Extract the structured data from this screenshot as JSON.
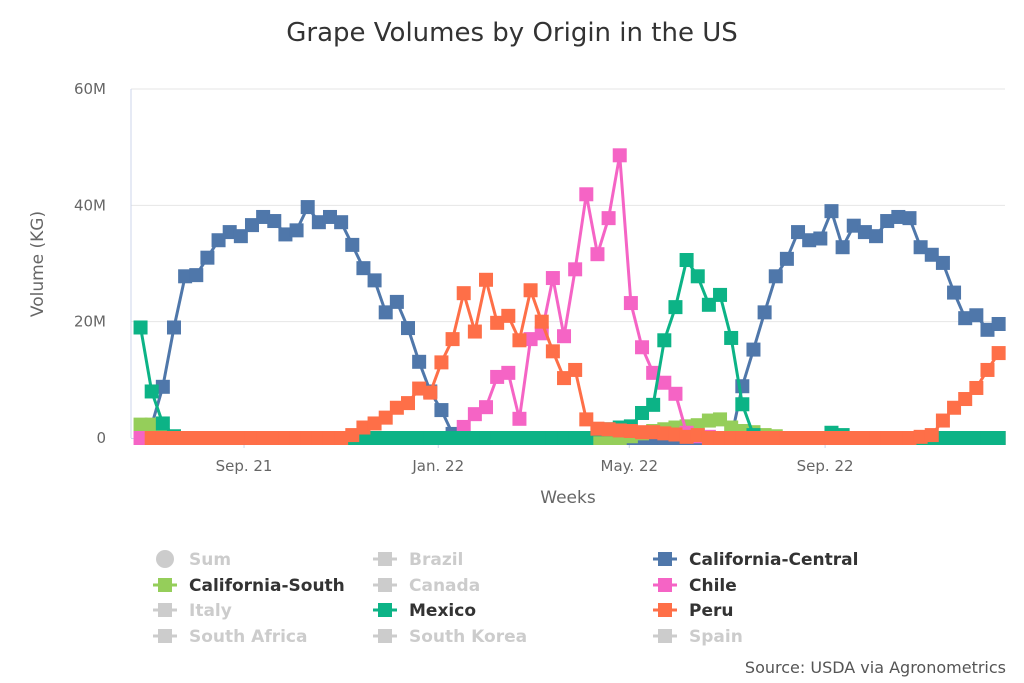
{
  "chart_data": {
    "type": "line",
    "title": "Grape Volumes by Origin in the US",
    "xlabel": "Weeks",
    "ylabel": "Volume (KG)",
    "ylim": [
      0,
      60000000
    ],
    "yticks": [
      0,
      20000000,
      40000000,
      60000000
    ],
    "ytick_labels": [
      "0",
      "20M",
      "40M",
      "60M"
    ],
    "xlim": [
      "2021-06-22",
      "2022-12-23"
    ],
    "xticks": [
      "2021-09-01",
      "2022-01-01",
      "2022-05-01",
      "2022-09-01"
    ],
    "xtick_labels": [
      "Sep. 21",
      "Jan. 22",
      "May. 22",
      "Sep. 22"
    ],
    "grid": "horizontal",
    "unit_scale": "millions of KG",
    "marker": "square",
    "x": [
      "2021-06-28",
      "2021-07-05",
      "2021-07-12",
      "2021-07-19",
      "2021-07-26",
      "2021-08-02",
      "2021-08-09",
      "2021-08-16",
      "2021-08-23",
      "2021-08-30",
      "2021-09-06",
      "2021-09-13",
      "2021-09-20",
      "2021-09-27",
      "2021-10-04",
      "2021-10-11",
      "2021-10-18",
      "2021-10-25",
      "2021-11-01",
      "2021-11-08",
      "2021-11-15",
      "2021-11-22",
      "2021-11-29",
      "2021-12-06",
      "2021-12-13",
      "2021-12-20",
      "2021-12-27",
      "2022-01-03",
      "2022-01-10",
      "2022-01-17",
      "2022-01-24",
      "2022-01-31",
      "2022-02-07",
      "2022-02-14",
      "2022-02-21",
      "2022-02-28",
      "2022-03-07",
      "2022-03-14",
      "2022-03-21",
      "2022-03-28",
      "2022-04-04",
      "2022-04-11",
      "2022-04-18",
      "2022-04-25",
      "2022-05-02",
      "2022-05-09",
      "2022-05-16",
      "2022-05-23",
      "2022-05-30",
      "2022-06-06",
      "2022-06-13",
      "2022-06-20",
      "2022-06-27",
      "2022-07-04",
      "2022-07-11",
      "2022-07-18",
      "2022-07-25",
      "2022-08-01",
      "2022-08-08",
      "2022-08-15",
      "2022-08-22",
      "2022-08-29",
      "2022-09-05",
      "2022-09-12",
      "2022-09-19",
      "2022-09-26",
      "2022-10-03",
      "2022-10-10",
      "2022-10-17",
      "2022-10-24",
      "2022-10-31",
      "2022-11-07",
      "2022-11-14",
      "2022-11-21",
      "2022-11-28",
      "2022-12-05",
      "2022-12-12",
      "2022-12-19"
    ],
    "series": [
      {
        "name": "California-Central",
        "color": "#4f77aa",
        "values": [
          null,
          2.2,
          8.8,
          19,
          27.8,
          28,
          31,
          34,
          35.4,
          34.7,
          36.6,
          38,
          37.3,
          35,
          35.7,
          39.7,
          37.1,
          38,
          37.1,
          33.2,
          29.2,
          27.1,
          21.6,
          23.4,
          18.9,
          13.1,
          8,
          4.8,
          0.7,
          0,
          0,
          0,
          0,
          0,
          0,
          0,
          0,
          0,
          0,
          0,
          0,
          0,
          0,
          0,
          0,
          0,
          0,
          0,
          0,
          0,
          0,
          0,
          0,
          0,
          8.9,
          15.2,
          21.6,
          27.8,
          30.8,
          35.4,
          34,
          34.3,
          39,
          32.8,
          36.5,
          35.4,
          34.7,
          37.3,
          38,
          37.8,
          32.8,
          31.5,
          30.1,
          25,
          20.6,
          21.1,
          18.6,
          19.6
        ]
      },
      {
        "name": "California-South",
        "color": "#95ce5a",
        "values": [
          2.3,
          2.3,
          0.5,
          0,
          0,
          0,
          0,
          0,
          0,
          0,
          0,
          0,
          0,
          0,
          0,
          0,
          0,
          0,
          0,
          0,
          0,
          0,
          0,
          0,
          0,
          0,
          0,
          0,
          0,
          0,
          0,
          0,
          0,
          0,
          0,
          0,
          0,
          0,
          0,
          0,
          0,
          0,
          0,
          0,
          0.3,
          0.8,
          1.2,
          1.5,
          1.8,
          2,
          2.2,
          3,
          3.2,
          1.8,
          1.2,
          1,
          0.5,
          0.3,
          0,
          0,
          0,
          0,
          0,
          0,
          0,
          0,
          0,
          0,
          0,
          0,
          0,
          0,
          0,
          0,
          0,
          0,
          0,
          0
        ]
      },
      {
        "name": "Chile",
        "color": "#f564c5",
        "values": [
          0,
          0,
          0,
          0,
          0,
          0,
          0,
          0,
          0,
          0,
          0,
          0,
          0,
          0,
          0,
          0,
          0,
          0,
          0,
          0,
          0,
          0,
          0,
          0,
          0,
          0,
          0,
          0,
          0,
          1.9,
          4.1,
          5.3,
          10.5,
          11.2,
          3.3,
          17,
          18,
          27.5,
          17.5,
          29,
          41.9,
          31.6,
          37.8,
          48.6,
          23.2,
          15.6,
          11.2,
          9.5,
          7.6,
          0.9,
          0.3,
          0.2,
          0,
          0,
          0,
          0,
          0,
          0,
          0,
          0,
          0,
          0,
          0,
          0,
          0,
          0,
          0,
          0,
          0,
          0,
          0,
          0,
          0,
          0,
          0,
          0,
          0,
          0
        ]
      },
      {
        "name": "Mexico",
        "color": "#0cb386",
        "values": [
          19,
          8,
          2.5,
          0.3,
          0,
          0,
          0,
          0,
          0,
          0,
          0,
          0,
          0,
          0,
          0,
          0,
          0,
          0,
          0,
          0,
          0,
          0,
          0,
          0,
          0,
          0,
          0,
          0,
          0,
          0,
          0,
          0,
          0,
          0,
          0,
          0,
          0,
          0,
          0,
          0,
          0,
          1.5,
          1.5,
          1.8,
          2,
          4.3,
          5.7,
          16.8,
          22.5,
          30.6,
          27.8,
          22.9,
          24.6,
          17.2,
          5.8,
          0.5,
          0,
          0,
          0,
          0,
          0,
          0,
          0.9,
          0.5,
          0,
          0,
          0,
          0,
          0,
          0,
          0,
          0,
          0,
          0,
          0,
          0,
          0,
          0
        ]
      },
      {
        "name": "Peru",
        "color": "#fe6f48",
        "values": [
          null,
          0,
          0,
          0,
          0,
          0,
          0,
          0,
          0,
          0,
          0,
          0,
          0,
          0,
          0,
          0,
          0,
          0,
          0,
          0.5,
          1.8,
          2.5,
          3.5,
          5.2,
          6,
          8.5,
          7.8,
          13,
          17,
          24.9,
          18.3,
          27.2,
          19.8,
          21,
          16.8,
          25.4,
          20,
          14.9,
          10.3,
          11.7,
          3.2,
          1.6,
          1.5,
          1.3,
          1.2,
          1,
          1,
          0.8,
          0.6,
          0.2,
          0.5,
          0,
          0,
          0,
          0,
          0,
          0,
          0,
          0,
          0,
          0,
          0,
          0,
          0,
          0,
          0,
          0,
          0,
          0,
          0,
          0.2,
          0.5,
          3,
          5.2,
          6.7,
          8.6,
          11.7,
          14.6
        ]
      }
    ],
    "legend": {
      "placement": "bottom",
      "inactive_color": "#cccccc",
      "items": [
        {
          "name": "Sum",
          "active": false,
          "symbol": "circle"
        },
        {
          "name": "Brazil",
          "active": false,
          "symbol": "square"
        },
        {
          "name": "California-Central",
          "active": true,
          "symbol": "square",
          "color": "#4f77aa"
        },
        {
          "name": "California-South",
          "active": true,
          "symbol": "square",
          "color": "#95ce5a"
        },
        {
          "name": "Canada",
          "active": false,
          "symbol": "square"
        },
        {
          "name": "Chile",
          "active": true,
          "symbol": "square",
          "color": "#f564c5"
        },
        {
          "name": "Italy",
          "active": false,
          "symbol": "square"
        },
        {
          "name": "Mexico",
          "active": true,
          "symbol": "square",
          "color": "#0cb386"
        },
        {
          "name": "Peru",
          "active": true,
          "symbol": "square",
          "color": "#fe6f48"
        },
        {
          "name": "South Africa",
          "active": false,
          "symbol": "square"
        },
        {
          "name": "South Korea",
          "active": false,
          "symbol": "square"
        },
        {
          "name": "Spain",
          "active": false,
          "symbol": "square"
        }
      ]
    },
    "credit": "Source: USDA via Agronometrics"
  }
}
